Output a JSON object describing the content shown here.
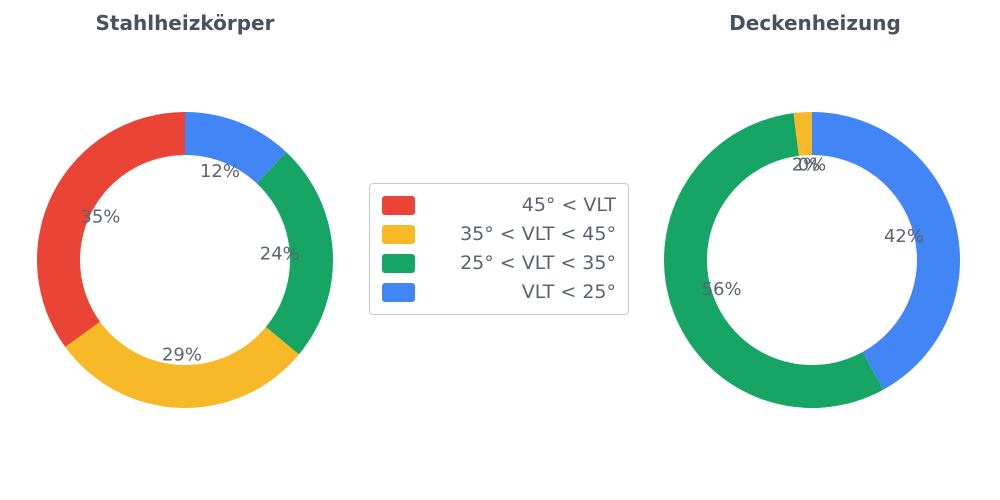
{
  "page": {
    "background": "#ffffff",
    "text_color": "#5b6472",
    "title_color": "#47515f"
  },
  "legend": {
    "border_color": "#c9c9c9",
    "items": [
      {
        "label": "45° < VLT",
        "color": "#ea4436"
      },
      {
        "label": "35° < VLT < 45°",
        "color": "#f7b928"
      },
      {
        "label": "25° < VLT < 35°",
        "color": "#17a566"
      },
      {
        "label": "VLT < 25°",
        "color": "#4285f4"
      }
    ]
  },
  "chart_data": [
    {
      "type": "pie",
      "donut": true,
      "hole": 0.71,
      "title": "Stahlheizkörper",
      "labels": [
        "45° < VLT",
        "35° < VLT < 45°",
        "25° < VLT < 35°",
        "VLT < 25°"
      ],
      "values": [
        35,
        29,
        24,
        12
      ],
      "value_labels": [
        "35%",
        "29%",
        "24%",
        "12%"
      ],
      "colors": [
        "#ea4436",
        "#f7b928",
        "#17a566",
        "#4285f4"
      ],
      "start_angle_deg": 90,
      "direction": "counterclockwise",
      "legend_position": "center-between-charts"
    },
    {
      "type": "pie",
      "donut": true,
      "hole": 0.71,
      "title": "Deckenheizung",
      "labels": [
        "45° < VLT",
        "35° < VLT < 45°",
        "25° < VLT < 35°",
        "VLT < 25°"
      ],
      "values": [
        0,
        2,
        56,
        42
      ],
      "value_labels": [
        "0%",
        "2%",
        "56%",
        "42%"
      ],
      "colors": [
        "#ea4436",
        "#f7b928",
        "#17a566",
        "#4285f4"
      ],
      "start_angle_deg": 90,
      "direction": "counterclockwise",
      "legend_position": "center-between-charts"
    }
  ]
}
